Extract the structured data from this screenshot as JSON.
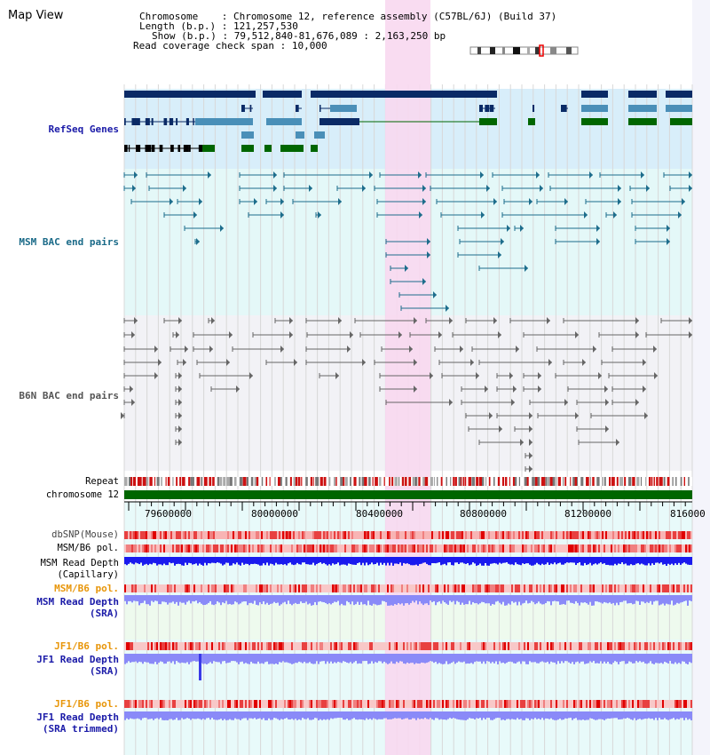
{
  "window": {
    "title": "Map View"
  },
  "header": {
    "chromosome_label": "Chromosome",
    "chromosome_value": "Chromosome 12, reference assembly (C57BL/6J) (Build 37)",
    "length_label": "Length (b.p.)",
    "length_value": "121,257,530",
    "show_label": "Show (b.p.)",
    "show_value": "79,512,840-81,676,089 : 2,163,250 bp",
    "coverage_label": "Read coverage check span",
    "coverage_value": "10,000"
  },
  "tracks": {
    "refseq": "RefSeq Genes",
    "msm_bac": "MSM BAC end pairs",
    "b6n_bac": "B6N BAC end pairs",
    "repeat": "Repeat",
    "chromosome": "chromosome 12",
    "dbsnp": "dbSNP(Mouse)",
    "msm_b6_pol_cap": "MSM/B6 pol.",
    "msm_depth_cap_1": "MSM Read Depth",
    "msm_depth_cap_2": "(Capillary)",
    "msm_b6_pol_sra": "MSM/B6 pol.",
    "msm_depth_sra_1": "MSM Read Depth",
    "msm_depth_sra_2": "(SRA)",
    "jf1_b6_pol_sra": "JF1/B6 pol.",
    "jf1_depth_sra_1": "JF1 Read Depth",
    "jf1_depth_sra_2": "(SRA)",
    "jf1_b6_pol_trim": "JF1/B6 pol.",
    "jf1_depth_trim_1": "JF1 Read Depth",
    "jf1_depth_trim_2": "(SRA trimmed)"
  },
  "axis": {
    "ticks": [
      "79600000",
      "80000000",
      "80400000",
      "80800000",
      "81200000",
      "816000"
    ]
  },
  "colors": {
    "highlight": "#f8d8f0",
    "refseq_bg": "#d8eefa",
    "msm_bg": "#e4f8f8",
    "b6n_bg": "#f2f2f6",
    "gene_dark": "#0a2a66",
    "gene_mid": "#4a8fb8",
    "gene_green": "#006600",
    "bac_teal": "#1d6d8c",
    "bac_gray": "#666666",
    "label_blue": "#1a1aa8",
    "label_teal": "#1a6a88",
    "label_orange": "#e8960a",
    "depth_dark": "#1a1aee",
    "depth_light": "#8a8af8"
  }
}
